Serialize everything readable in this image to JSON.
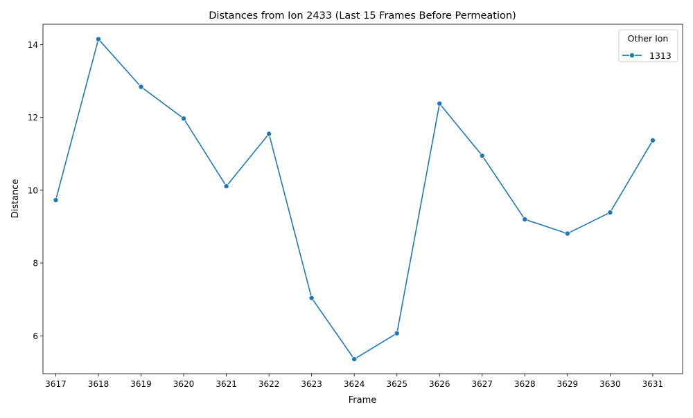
{
  "chart_data": {
    "type": "line",
    "title": "Distances from Ion 2433 (Last 15 Frames Before Permeation)",
    "xlabel": "Frame",
    "ylabel": "Distance",
    "x": [
      3617,
      3618,
      3619,
      3620,
      3621,
      3622,
      3623,
      3624,
      3625,
      3626,
      3627,
      3628,
      3629,
      3630,
      3631
    ],
    "x_tick_labels": [
      "3617",
      "3618",
      "3619",
      "3620",
      "3621",
      "3622",
      "3623",
      "3624",
      "3625",
      "3626",
      "3627",
      "3628",
      "3629",
      "3630",
      "3631"
    ],
    "y_ticks": [
      6,
      8,
      10,
      12,
      14
    ],
    "y_tick_labels": [
      "6",
      "8",
      "10",
      "12",
      "14"
    ],
    "xlim": [
      3616.7,
      3631.7
    ],
    "ylim": [
      4.96,
      14.56
    ],
    "grid": false,
    "legend": {
      "title": "Other Ion",
      "placement": "top-right"
    },
    "series": [
      {
        "name": "1313",
        "color": "#1f77b4",
        "marker": "circle",
        "values": [
          9.73,
          14.15,
          12.84,
          11.97,
          10.11,
          11.55,
          7.04,
          5.36,
          6.07,
          12.38,
          10.95,
          9.2,
          8.81,
          9.39,
          11.37
        ]
      }
    ]
  }
}
